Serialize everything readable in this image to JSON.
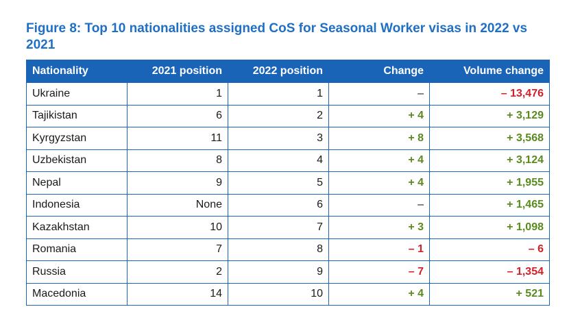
{
  "figure_title": "Figure 8: Top 10 nationalities assigned CoS for Seasonal Worker visas in 2022 vs 2021",
  "colors": {
    "title": "#1f6fc5",
    "header_bg": "#1a64b8",
    "positive": "#5a8a1e",
    "negative": "#d0202a"
  },
  "table": {
    "headers": [
      "Nationality",
      "2021 position",
      "2022 position",
      "Change",
      "Volume change"
    ],
    "rows": [
      {
        "nationality": "Ukraine",
        "pos2021": "1",
        "pos2022": "1",
        "change": "–",
        "change_sign": "neutral",
        "volume": "– 13,476",
        "volume_sign": "neg"
      },
      {
        "nationality": "Tajikistan",
        "pos2021": "6",
        "pos2022": "2",
        "change": "+ 4",
        "change_sign": "pos",
        "volume": "+ 3,129",
        "volume_sign": "pos"
      },
      {
        "nationality": "Kyrgyzstan",
        "pos2021": "11",
        "pos2022": "3",
        "change": "+ 8",
        "change_sign": "pos",
        "volume": "+ 3,568",
        "volume_sign": "pos"
      },
      {
        "nationality": "Uzbekistan",
        "pos2021": "8",
        "pos2022": "4",
        "change": "+ 4",
        "change_sign": "pos",
        "volume": "+ 3,124",
        "volume_sign": "pos"
      },
      {
        "nationality": "Nepal",
        "pos2021": "9",
        "pos2022": "5",
        "change": "+ 4",
        "change_sign": "pos",
        "volume": "+ 1,955",
        "volume_sign": "pos"
      },
      {
        "nationality": "Indonesia",
        "pos2021": "None",
        "pos2022": "6",
        "change": "–",
        "change_sign": "neutral",
        "volume": "+ 1,465",
        "volume_sign": "pos"
      },
      {
        "nationality": "Kazakhstan",
        "pos2021": "10",
        "pos2022": "7",
        "change": "+ 3",
        "change_sign": "pos",
        "volume": "+ 1,098",
        "volume_sign": "pos"
      },
      {
        "nationality": "Romania",
        "pos2021": "7",
        "pos2022": "8",
        "change": "– 1",
        "change_sign": "neg",
        "volume": "– 6",
        "volume_sign": "neg"
      },
      {
        "nationality": "Russia",
        "pos2021": "2",
        "pos2022": "9",
        "change": "– 7",
        "change_sign": "neg",
        "volume": "– 1,354",
        "volume_sign": "neg"
      },
      {
        "nationality": "Macedonia",
        "pos2021": "14",
        "pos2022": "10",
        "change": "+ 4",
        "change_sign": "pos",
        "volume": "+ 521",
        "volume_sign": "pos"
      }
    ]
  }
}
